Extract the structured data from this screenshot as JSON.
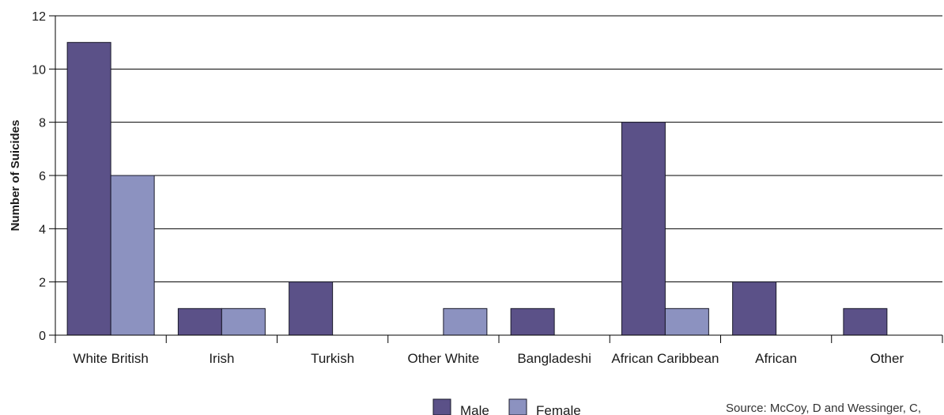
{
  "chart_data": {
    "type": "bar",
    "ylabel": "Number of Suicides",
    "xlabel": "",
    "ylim": [
      0,
      12
    ],
    "yticks": [
      0,
      2,
      4,
      6,
      8,
      10,
      12
    ],
    "grid": true,
    "legend_position": "bottom-center",
    "categories": [
      "White British",
      "Irish",
      "Turkish",
      "Other White",
      "Bangladeshi",
      "African Caribbean",
      "African",
      "Other"
    ],
    "series": [
      {
        "name": "Male",
        "color": "#5b5188",
        "values": [
          11,
          1,
          2,
          0,
          1,
          8,
          2,
          1
        ]
      },
      {
        "name": "Female",
        "color": "#8c92c0",
        "values": [
          6,
          1,
          0,
          1,
          0,
          1,
          0,
          0
        ]
      }
    ]
  },
  "source_text": "Source: McCoy, D and Wessinger, C,"
}
